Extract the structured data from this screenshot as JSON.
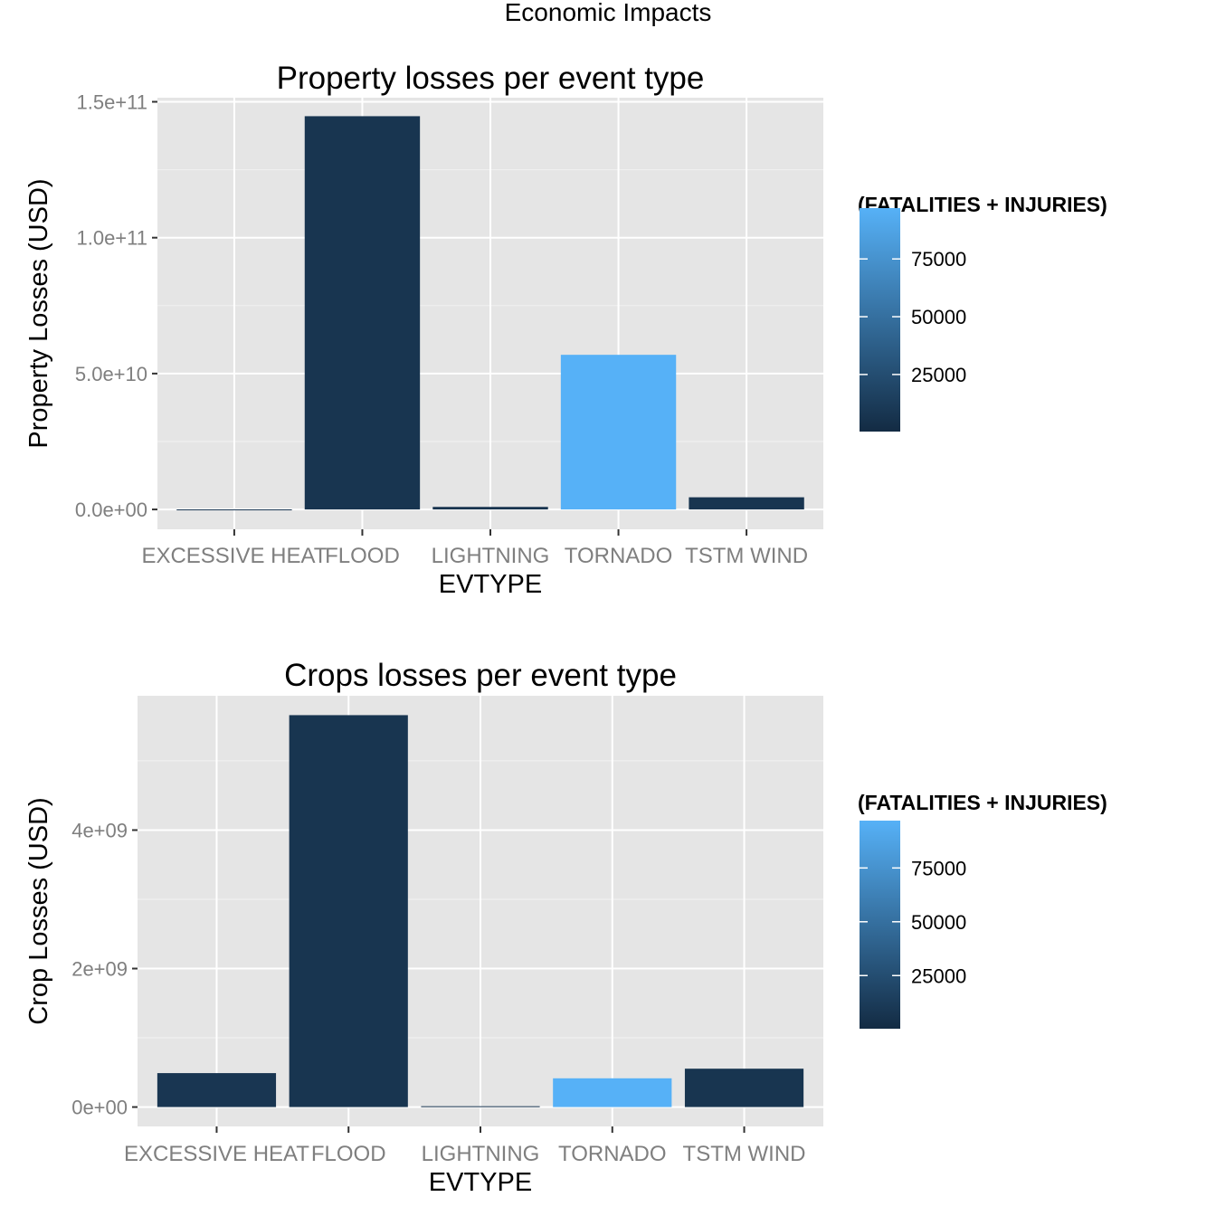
{
  "figure_title": "Economic Impacts",
  "colors": {
    "low": "#132B43",
    "high": "#56B1F7",
    "panel_bg": "#E5E5E5",
    "grid": "#FFFFFF",
    "tick_text": "#7F7F7F"
  },
  "legend": {
    "title": "(FATALITIES + INJURIES)",
    "breaks": [
      25000,
      50000,
      75000
    ],
    "break_labels": [
      "25000",
      "50000",
      "75000"
    ],
    "range": [
      300,
      97000
    ]
  },
  "chart_data": [
    {
      "type": "bar",
      "title": "Property losses per event type",
      "xlabel": "EVTYPE",
      "ylabel": "Property Losses (USD)",
      "categories": [
        "EXCESSIVE HEAT",
        "FLOOD",
        "LIGHTNING",
        "TORNADO",
        "TSTM WIND"
      ],
      "values": [
        7700000,
        144700000000,
        930000000,
        56900000000,
        4480000000
      ],
      "color_values": [
        8400,
        7300,
        6000,
        97000,
        7500
      ],
      "ylim": [
        -7300000000,
        151500000000
      ],
      "yticks": [
        0,
        50000000000,
        100000000000,
        150000000000
      ],
      "ytick_labels": [
        "0.0e+00",
        "5.0e+10",
        "1.0e+11",
        "1.5e+11"
      ],
      "grid": true
    },
    {
      "type": "bar",
      "title": "Crops losses per event type",
      "xlabel": "EVTYPE",
      "ylabel": "Crop Losses (USD)",
      "categories": [
        "EXCESSIVE HEAT",
        "FLOOD",
        "LIGHTNING",
        "TORNADO",
        "TSTM WIND"
      ],
      "values": [
        490000000,
        5660000000,
        12000000,
        415000000,
        554000000
      ],
      "color_values": [
        8400,
        7300,
        6000,
        97000,
        7500
      ],
      "ylim": [
        -280000000,
        5940000000
      ],
      "yticks": [
        0,
        2000000000,
        4000000000
      ],
      "ytick_labels": [
        "0e+00",
        "2e+09",
        "4e+09"
      ],
      "grid": true
    }
  ]
}
